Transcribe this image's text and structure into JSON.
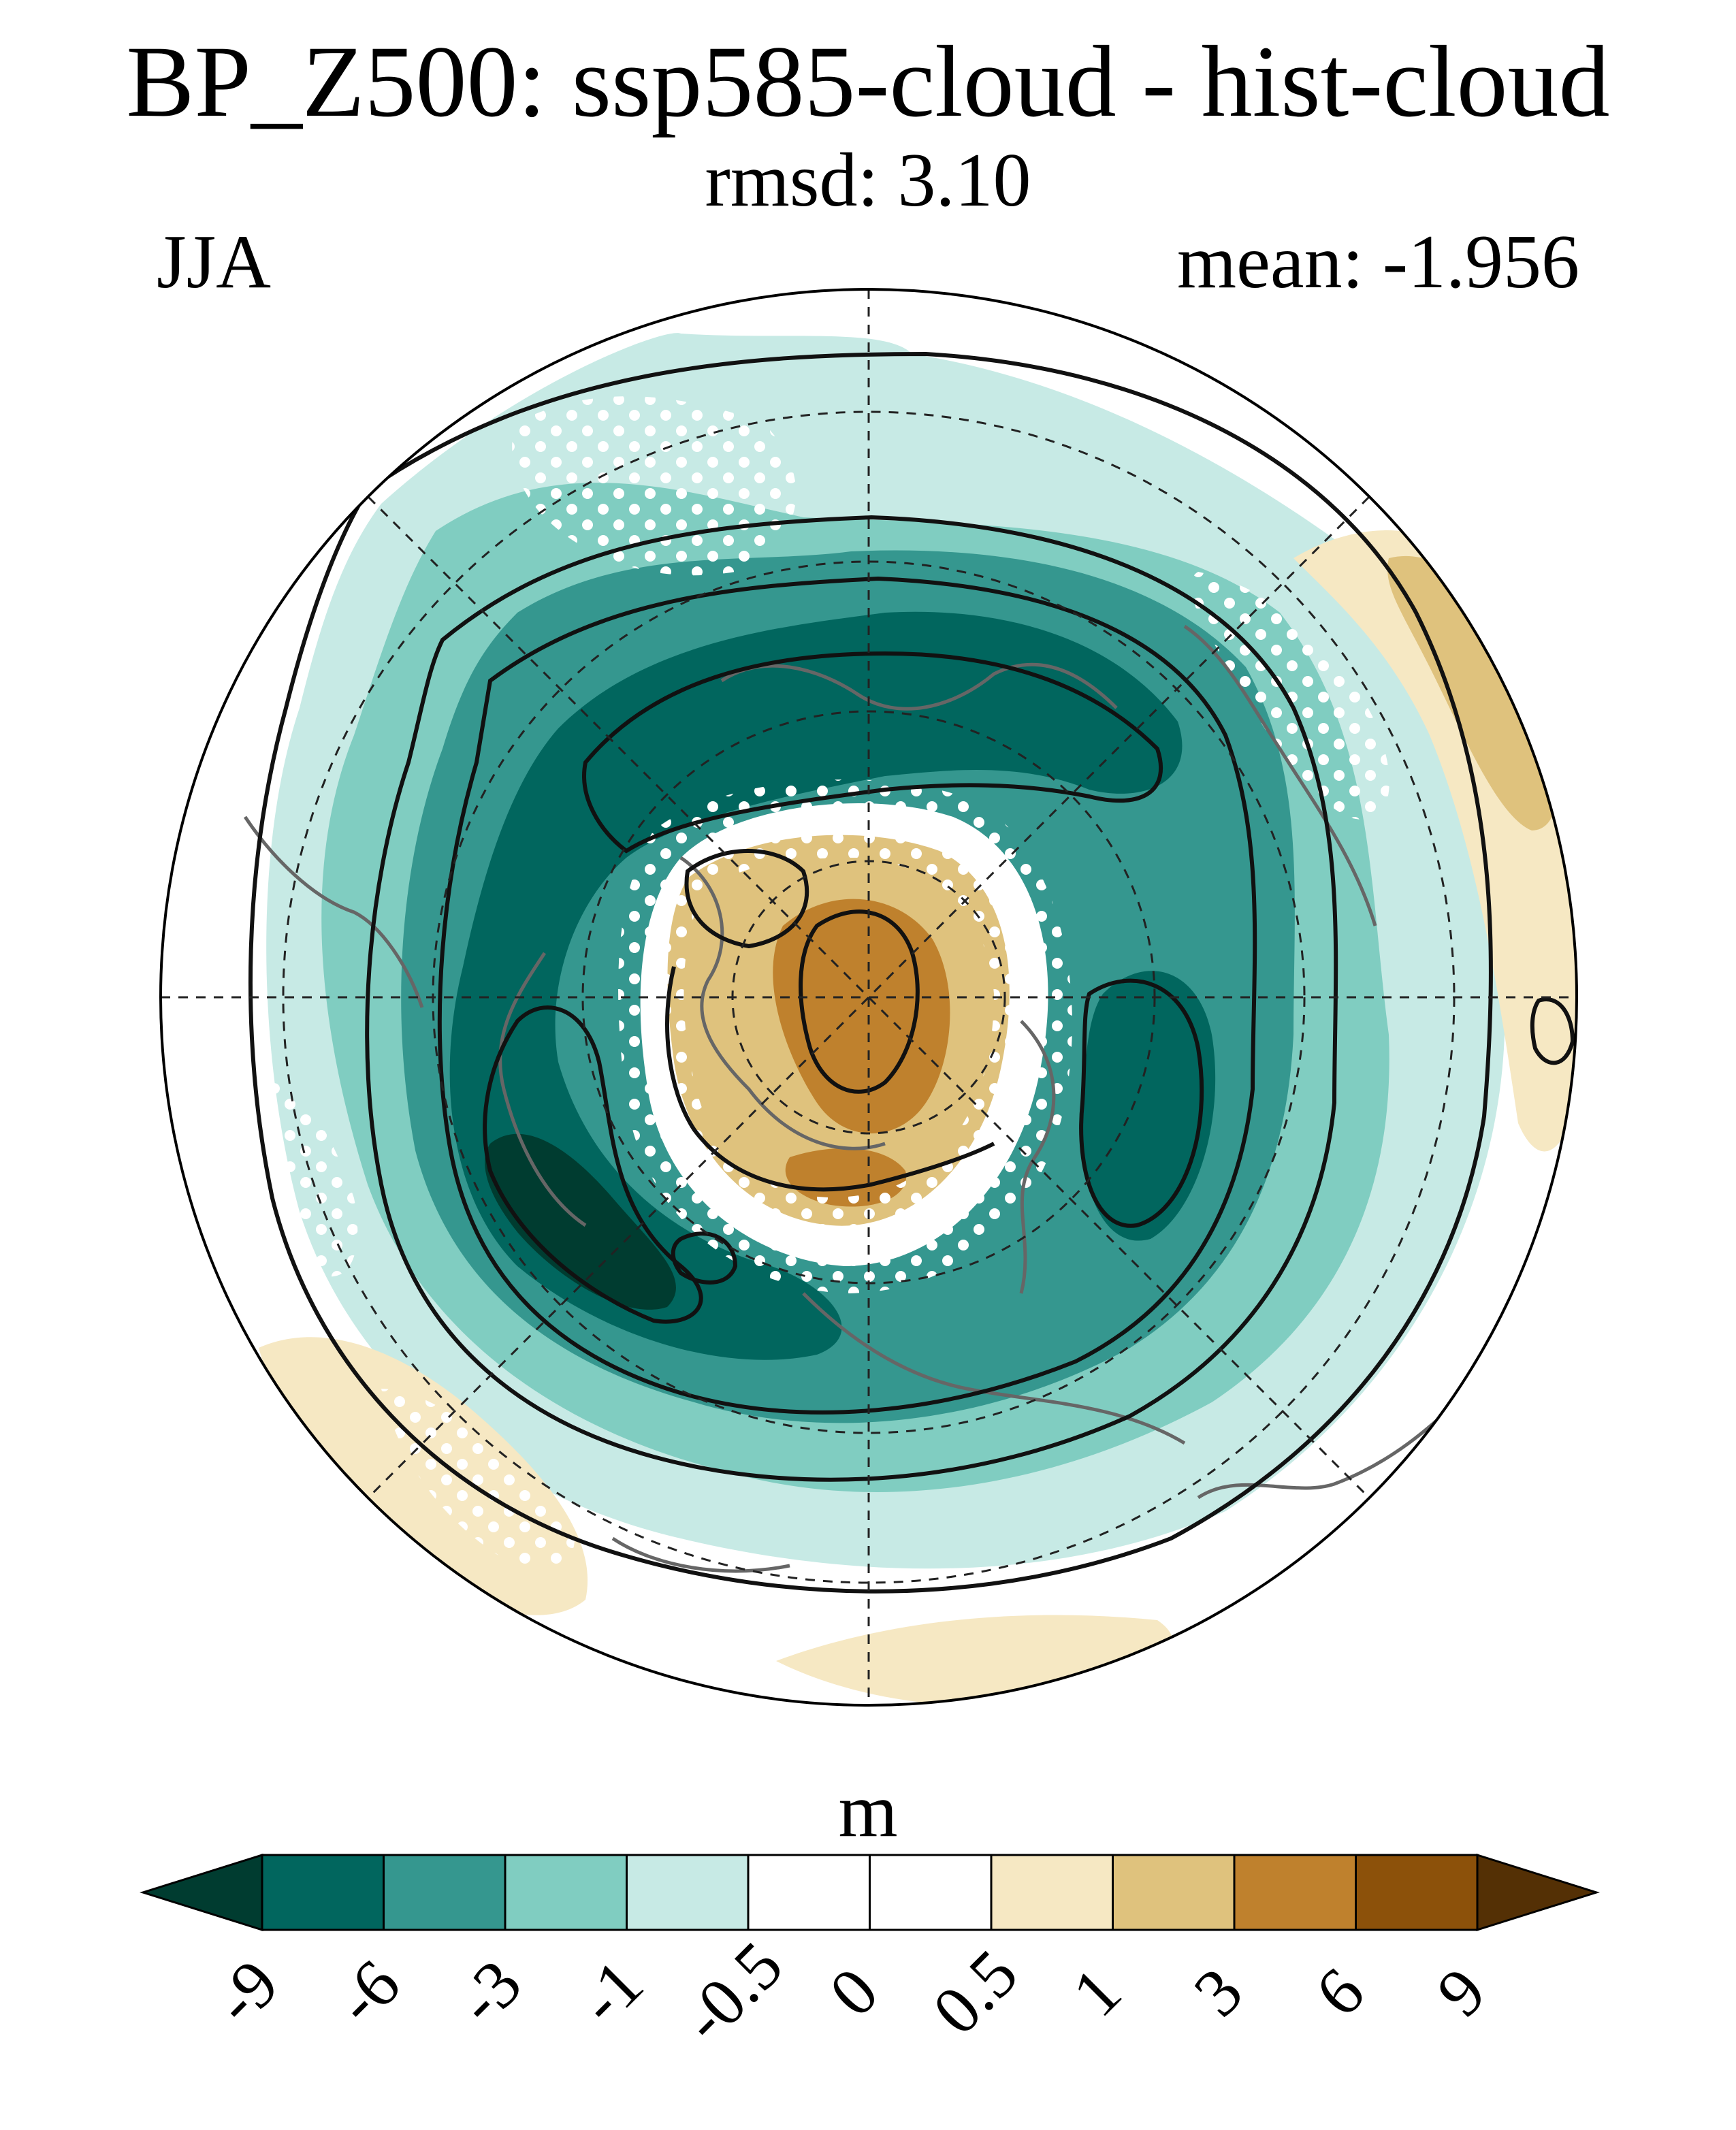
{
  "title": "BP_Z500: ssp585-cloud - hist-cloud",
  "subtitle": "rmsd: 3.10",
  "season": "JJA",
  "mean_label": "mean: -1.956",
  "colorbar": {
    "unit": "m",
    "tick_labels": [
      "-9",
      "-6",
      "-3",
      "-1",
      "-0.5",
      "0",
      "0.5",
      "1",
      "3",
      "6",
      "9"
    ],
    "colors": [
      "#003c30",
      "#01665e",
      "#35978f",
      "#80cdc1",
      "#c7eae5",
      "#ffffff",
      "#ffffff",
      "#f6e8c3",
      "#dfc27d",
      "#bf812d",
      "#8c510a",
      "#543005"
    ]
  },
  "map": {
    "projection": "north-polar-stereographic",
    "field": "Z500 difference",
    "features": [
      "stippling",
      "coastlines",
      "contours",
      "lat-lon-grid"
    ]
  }
}
